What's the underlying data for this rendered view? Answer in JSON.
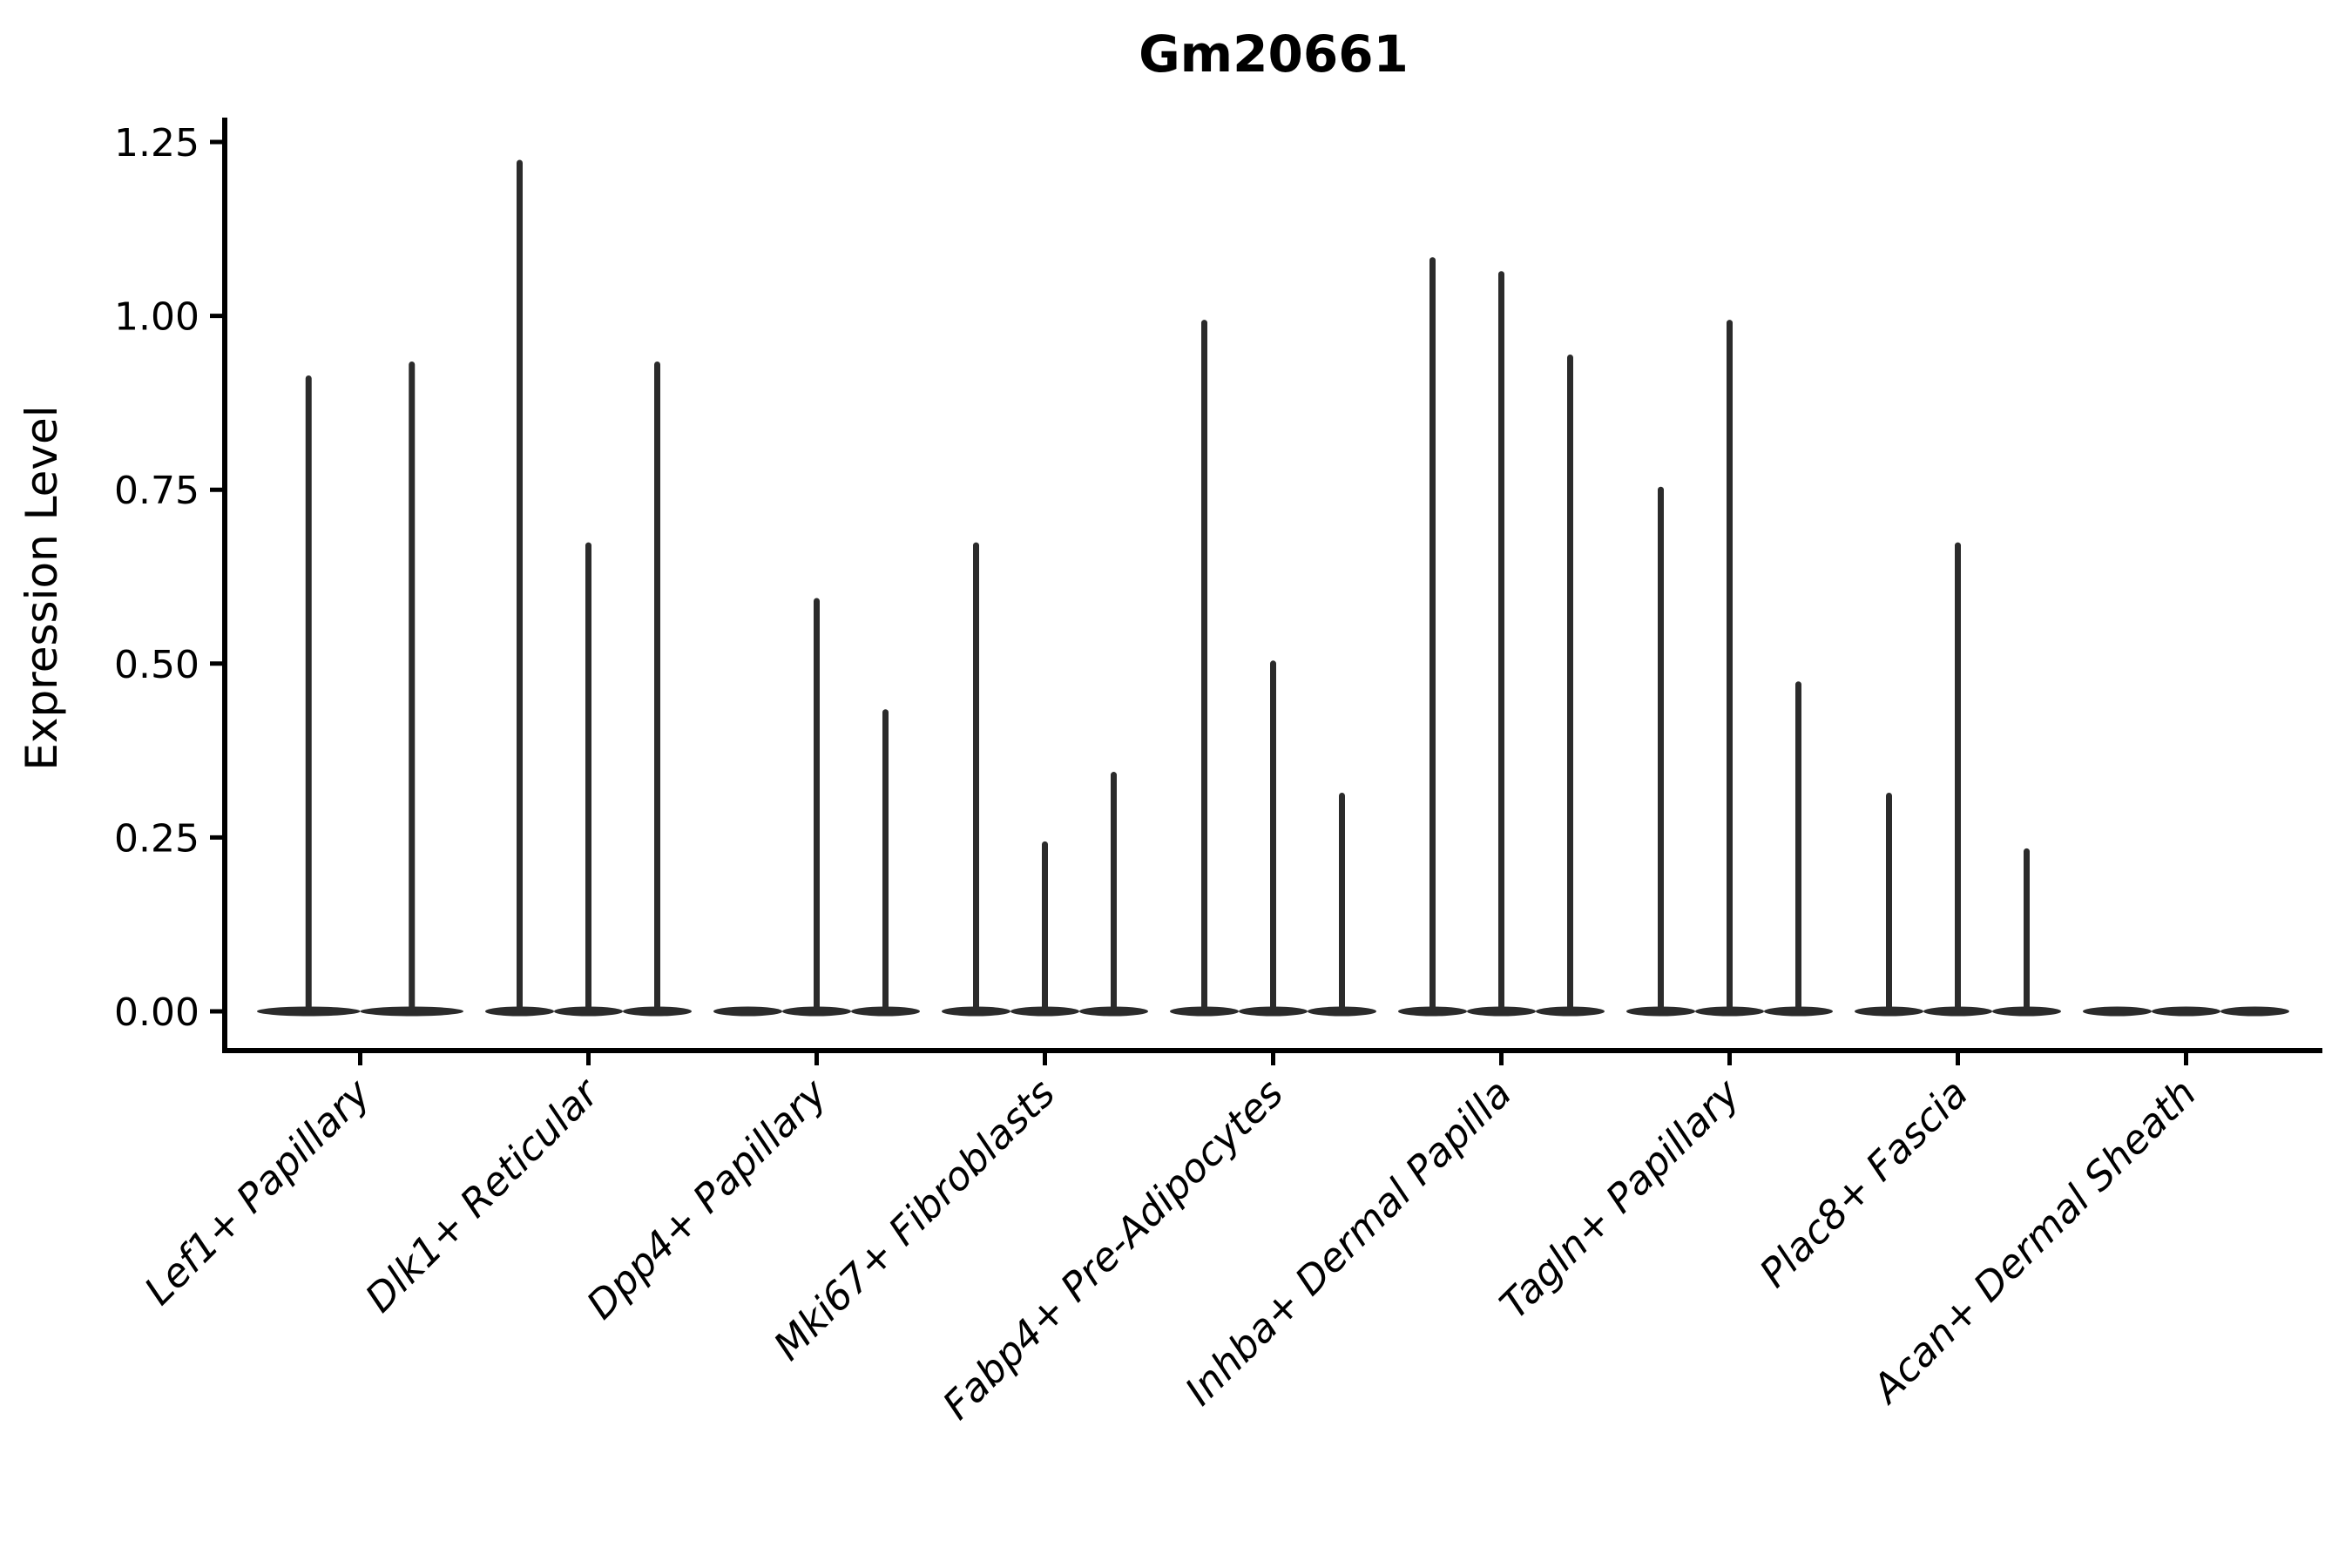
{
  "chart_data": {
    "type": "violin",
    "title": "Gm20661",
    "ylabel": "Expression Level",
    "xlabel": "",
    "ylim": [
      0,
      1.25
    ],
    "grid": false,
    "legend": "none",
    "ytick_labels": [
      "0.00",
      "0.25",
      "0.50",
      "0.75",
      "1.00",
      "1.25"
    ],
    "ytick_values": [
      0,
      0.25,
      0.5,
      0.75,
      1.0,
      1.25
    ],
    "categories": [
      "Lef1+ Papillary",
      "Dlk1+ Reticular",
      "Dpp4+ Papillary",
      "Mki67+ Fibroblasts",
      "Fabp4+ Pre-Adipocytes",
      "Inhba+ Dermal Papilla",
      "Tagln+ Papillary",
      "Plac8+ Fascia",
      "Acan+ Dermal Sheath"
    ],
    "series": [
      {
        "name": "Lef1+ Papillary",
        "values": [
          0.91,
          0.93
        ]
      },
      {
        "name": "Dlk1+ Reticular",
        "values": [
          1.22,
          0.67,
          0.93
        ]
      },
      {
        "name": "Dpp4+ Papillary",
        "values": [
          0.0,
          0.59,
          0.43
        ]
      },
      {
        "name": "Mki67+ Fibroblasts",
        "values": [
          0.67,
          0.24,
          0.34
        ]
      },
      {
        "name": "Fabp4+ Pre-Adipocytes",
        "values": [
          0.99,
          0.5,
          0.31
        ]
      },
      {
        "name": "Inhba+ Dermal Papilla",
        "values": [
          1.08,
          1.06,
          0.94
        ]
      },
      {
        "name": "Tagln+ Papillary",
        "values": [
          0.75,
          0.99,
          0.47
        ]
      },
      {
        "name": "Plac8+ Fascia",
        "values": [
          0.31,
          0.67,
          0.23
        ]
      },
      {
        "name": "Acan+ Dermal Sheath",
        "values": [
          0.0,
          0.0,
          0.0
        ]
      }
    ],
    "colors": {
      "ink": "#2b2b2b",
      "axis": "#000000",
      "text": "#000000",
      "background": "#ffffff"
    }
  }
}
